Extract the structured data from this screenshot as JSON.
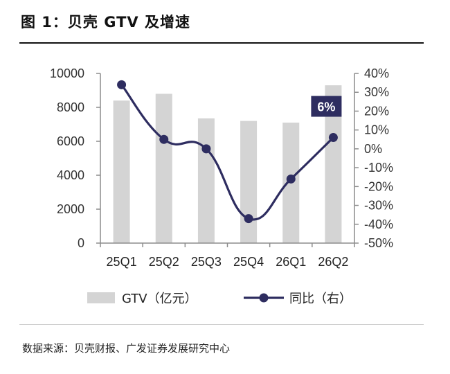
{
  "title": "图 1：贝壳 GTV 及增速",
  "source": "数据来源：贝壳财报、广发证券发展研究中心",
  "colors": {
    "bar": "#d4d4d4",
    "line": "#2e2d60",
    "label_bg": "#2e2d60",
    "axis": "#8c8c8c"
  },
  "chart_data": {
    "type": "bar",
    "categories": [
      "25Q1",
      "25Q2",
      "25Q3",
      "25Q4",
      "26Q1",
      "26Q2"
    ],
    "series": [
      {
        "name": "GTV（亿元）",
        "type": "bar",
        "axis": "left",
        "values": [
          8400,
          8800,
          7350,
          7200,
          7100,
          9300
        ]
      },
      {
        "name": "同比（右）",
        "type": "line",
        "axis": "right",
        "values": [
          34,
          5,
          0,
          -37,
          -16,
          6
        ]
      }
    ],
    "left_axis": {
      "ylim": [
        0,
        10000
      ],
      "ticks": [
        "0",
        "2000",
        "4000",
        "6000",
        "8000",
        "10000"
      ]
    },
    "right_axis": {
      "ylim": [
        -50,
        40
      ],
      "ticks": [
        "-50%",
        "-40%",
        "-30%",
        "-20%",
        "-10%",
        "0%",
        "10%",
        "20%",
        "30%",
        "40%"
      ]
    },
    "annotation": "6%",
    "legend_position": "bottom",
    "grid": false
  }
}
